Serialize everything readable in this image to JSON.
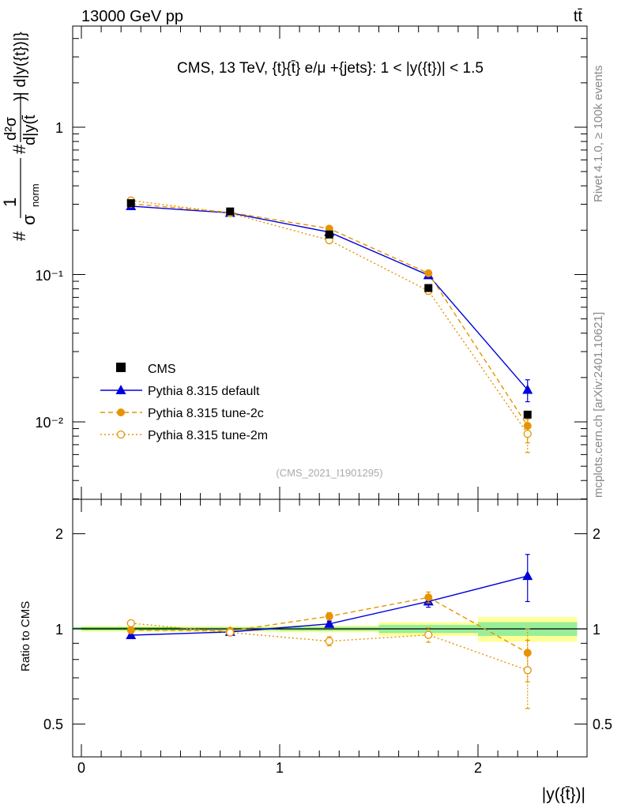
{
  "header": {
    "energy_label": "13000 GeV pp",
    "process_label": "tt̄",
    "plot_title": "CMS, 13 TeV, {t}{t̄} e/μ +{jets}: 1 < |y({t})| < 1.5",
    "rivet_label": "Rivet 4.1.0, ≥ 100k events",
    "site_label": "mcplots.cern.ch [arXiv:2401.10621]",
    "analysis_label": "(CMS_2021_I1901295)"
  },
  "axes": {
    "ylabel_main_frac_num": "1",
    "ylabel_main_frac_den": "σ",
    "ylabel_main_sub": "norm",
    "ylabel_main_hash": "#",
    "ylabel_main_d2": "d²σ",
    "ylabel_main_dy": "d|y(t̄",
    "ylabel_main_rest": ")| d|y({t})|}",
    "ylabel_ratio": "Ratio to CMS",
    "xlabel": "|y({t̄})|",
    "main_y_ticks": [
      "10⁻²",
      "10⁻¹",
      "1"
    ],
    "ratio_y_ticks": [
      "0.5",
      "1",
      "2"
    ],
    "x_ticks": [
      "0",
      "1",
      "2"
    ]
  },
  "legend": {
    "items": [
      {
        "label": "CMS"
      },
      {
        "label": "Pythia 8.315 default"
      },
      {
        "label": "Pythia 8.315 tune-2c"
      },
      {
        "label": "Pythia 8.315 tune-2m"
      }
    ]
  },
  "colors": {
    "data": "#000000",
    "default": "#0000dd",
    "tune2c": "#e59400",
    "tune2m": "#e59400",
    "band_inner": "#99ee99",
    "band_outer": "#ffff99",
    "ratio_line": "#00aa00",
    "side_text": "#888888"
  },
  "chart_data": {
    "type": "line",
    "title": "CMS, 13 TeV, {t}{t̄} e/μ +{jets}: 1 < |y({t})| < 1.5",
    "xlabel": "|y({t̄})|",
    "ylabel": "1/σ_norm d²σ / d|y(t̄)| d|y(t)|",
    "xlim": [
      -0.1,
      2.55
    ],
    "ylim_main": [
      0.003,
      5.0
    ],
    "ylim_ratio": [
      0.4,
      2.4
    ],
    "yscale": "log",
    "bins": [
      [
        0,
        0.5
      ],
      [
        0.5,
        1.0
      ],
      [
        1.0,
        1.5
      ],
      [
        1.5,
        2.0
      ],
      [
        2.0,
        2.5
      ]
    ],
    "x": [
      0.25,
      0.75,
      1.25,
      1.75,
      2.25
    ],
    "data": {
      "name": "CMS",
      "values": [
        0.305,
        0.268,
        0.187,
        0.081,
        0.0112
      ],
      "ratio_band_inner": [
        0.012,
        0.012,
        0.015,
        0.03,
        0.05
      ],
      "ratio_band_outer": [
        0.02,
        0.02,
        0.025,
        0.05,
        0.09
      ]
    },
    "series": [
      {
        "name": "Pythia 8.315 default",
        "values": [
          0.291,
          0.262,
          0.194,
          0.099,
          0.0165
        ],
        "errors": [
          0.004,
          0.004,
          0.004,
          0.004,
          0.0028
        ],
        "ratio": [
          0.955,
          0.978,
          1.037,
          1.221,
          1.47
        ],
        "ratio_err": [
          0.02,
          0.02,
          0.02,
          0.05,
          0.25
        ]
      },
      {
        "name": "Pythia 8.315 tune-2c",
        "values": [
          0.302,
          0.264,
          0.205,
          0.102,
          0.0094
        ],
        "errors": [
          0.004,
          0.004,
          0.004,
          0.004,
          0.0022
        ],
        "ratio": [
          0.99,
          0.985,
          1.096,
          1.258,
          0.84
        ],
        "ratio_err": [
          0.02,
          0.02,
          0.03,
          0.05,
          0.16
        ]
      },
      {
        "name": "Pythia 8.315 tune-2m",
        "values": [
          0.318,
          0.261,
          0.171,
          0.0775,
          0.0083
        ],
        "errors": [
          0.004,
          0.004,
          0.004,
          0.004,
          0.0021
        ],
        "ratio": [
          1.042,
          0.974,
          0.914,
          0.957,
          0.74
        ],
        "ratio_err": [
          0.02,
          0.02,
          0.03,
          0.05,
          0.18
        ]
      }
    ]
  }
}
